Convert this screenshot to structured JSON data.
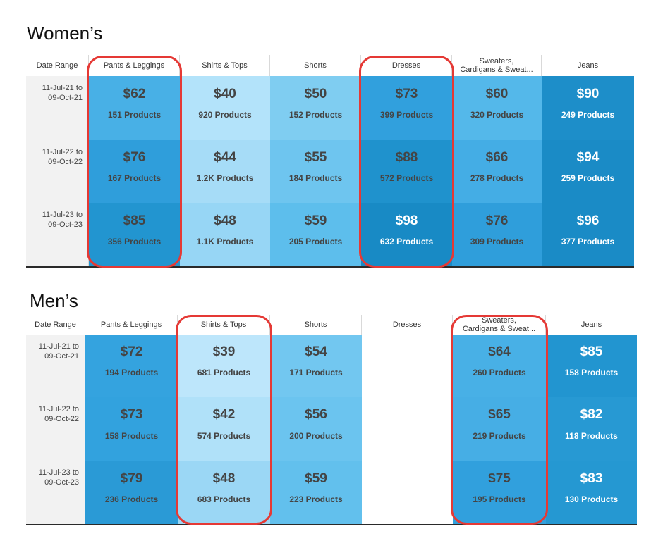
{
  "sections": [
    {
      "title": "Women’s",
      "header_date": "Date Range",
      "columns": [
        "Pants & Leggings",
        "Shirts & Tops",
        "Shorts",
        "Dresses",
        "Sweaters,\nCardigans & Sweat...",
        "Jeans"
      ],
      "highlighted_columns": [
        "Pants & Leggings",
        "Dresses"
      ],
      "rows": [
        {
          "date": "11-Jul-21 to\n09-Oct-21",
          "cells": [
            {
              "price": "$62",
              "count": "151 Products",
              "color": "#48b0e6"
            },
            {
              "price": "$40",
              "count": "920 Products",
              "color": "#b3e3fa"
            },
            {
              "price": "$50",
              "count": "152 Products",
              "color": "#7fcdf1"
            },
            {
              "price": "$73",
              "count": "399 Products",
              "color": "#31a0dd"
            },
            {
              "price": "$60",
              "count": "320 Products",
              "color": "#54b8ea"
            },
            {
              "price": "$90",
              "count": "249 Products",
              "color": "#1d8ec9"
            }
          ]
        },
        {
          "date": "11-Jul-22 to\n09-Oct-22",
          "cells": [
            {
              "price": "$76",
              "count": "167 Products",
              "color": "#2f9edb"
            },
            {
              "price": "$44",
              "count": "1.2K Products",
              "color": "#a6dcf7"
            },
            {
              "price": "$55",
              "count": "184 Products",
              "color": "#6ec5ef"
            },
            {
              "price": "$88",
              "count": "572 Products",
              "color": "#1f92cd"
            },
            {
              "price": "$66",
              "count": "278 Products",
              "color": "#44ade5"
            },
            {
              "price": "$94",
              "count": "259 Products",
              "color": "#1a8bc6"
            }
          ]
        },
        {
          "date": "11-Jul-23 to\n09-Oct-23",
          "cells": [
            {
              "price": "$85",
              "count": "356 Products",
              "color": "#2295d0"
            },
            {
              "price": "$48",
              "count": "1.1K Products",
              "color": "#97d6f5"
            },
            {
              "price": "$59",
              "count": "205 Products",
              "color": "#5dbeec"
            },
            {
              "price": "$98",
              "count": "632 Products",
              "color": "#188ac5"
            },
            {
              "price": "$76",
              "count": "309 Products",
              "color": "#2f9edb"
            },
            {
              "price": "$96",
              "count": "377 Products",
              "color": "#1a8bc6"
            }
          ]
        }
      ]
    },
    {
      "title": "Men’s",
      "header_date": "Date Range",
      "columns": [
        "Pants & Leggings",
        "Shirts & Tops",
        "Shorts",
        "Dresses",
        "Sweaters,\nCardigans & Sweat...",
        "Jeans"
      ],
      "highlighted_columns": [
        "Shirts & Tops",
        "Sweaters,\nCardigans & Sweat..."
      ],
      "rows": [
        {
          "date": "11-Jul-21 to\n09-Oct-21",
          "cells": [
            {
              "price": "$72",
              "count": "194 Products",
              "color": "#34a3df"
            },
            {
              "price": "$39",
              "count": "681 Products",
              "color": "#bde6fb"
            },
            {
              "price": "$54",
              "count": "171 Products",
              "color": "#72c7f0"
            },
            {
              "price": "",
              "count": "",
              "color": "#ffffff"
            },
            {
              "price": "$64",
              "count": "260 Products",
              "color": "#48b0e6"
            },
            {
              "price": "$85",
              "count": "158 Products",
              "color": "#2295d0"
            }
          ]
        },
        {
          "date": "11-Jul-22 to\n09-Oct-22",
          "cells": [
            {
              "price": "$73",
              "count": "158 Products",
              "color": "#32a2de"
            },
            {
              "price": "$42",
              "count": "574 Products",
              "color": "#b0e1f9"
            },
            {
              "price": "$56",
              "count": "200 Products",
              "color": "#6bc4ef"
            },
            {
              "price": "",
              "count": "",
              "color": "#ffffff"
            },
            {
              "price": "$65",
              "count": "219 Products",
              "color": "#46aee5"
            },
            {
              "price": "$82",
              "count": "118 Products",
              "color": "#2799d3"
            }
          ]
        },
        {
          "date": "11-Jul-23 to\n09-Oct-23",
          "cells": [
            {
              "price": "$79",
              "count": "236 Products",
              "color": "#2a9ad6"
            },
            {
              "price": "$48",
              "count": "683 Products",
              "color": "#9bd7f5"
            },
            {
              "price": "$59",
              "count": "223 Products",
              "color": "#62c0ed"
            },
            {
              "price": "",
              "count": "",
              "color": "#ffffff"
            },
            {
              "price": "$75",
              "count": "195 Products",
              "color": "#31a0dd"
            },
            {
              "price": "$83",
              "count": "130 Products",
              "color": "#2598d2"
            }
          ]
        }
      ]
    }
  ],
  "chart_data": [
    {
      "type": "heatmap",
      "title": "Women’s",
      "x": [
        "Pants & Leggings",
        "Shirts & Tops",
        "Shorts",
        "Dresses",
        "Sweaters, Cardigans & Sweat...",
        "Jeans"
      ],
      "y": [
        "11-Jul-21 to 09-Oct-21",
        "11-Jul-22 to 09-Oct-22",
        "11-Jul-23 to 09-Oct-23"
      ],
      "values": [
        [
          62,
          40,
          50,
          73,
          60,
          90
        ],
        [
          76,
          44,
          55,
          88,
          66,
          94
        ],
        [
          85,
          48,
          59,
          98,
          76,
          96
        ]
      ],
      "product_counts": [
        [
          "151",
          "920",
          "152",
          "399",
          "320",
          "249"
        ],
        [
          "167",
          "1.2K",
          "184",
          "572",
          "278",
          "259"
        ],
        [
          "356",
          "1.1K",
          "205",
          "632",
          "309",
          "377"
        ]
      ]
    },
    {
      "type": "heatmap",
      "title": "Men’s",
      "x": [
        "Pants & Leggings",
        "Shirts & Tops",
        "Shorts",
        "Dresses",
        "Sweaters, Cardigans & Sweat...",
        "Jeans"
      ],
      "y": [
        "11-Jul-21 to 09-Oct-21",
        "11-Jul-22 to 09-Oct-22",
        "11-Jul-23 to 09-Oct-23"
      ],
      "values": [
        [
          72,
          39,
          54,
          null,
          64,
          85
        ],
        [
          73,
          42,
          56,
          null,
          65,
          82
        ],
        [
          79,
          48,
          59,
          null,
          75,
          83
        ]
      ],
      "product_counts": [
        [
          "194",
          "681",
          "171",
          null,
          "260",
          "158"
        ],
        [
          "158",
          "574",
          "200",
          null,
          "219",
          "118"
        ],
        [
          "236",
          "683",
          "223",
          null,
          "195",
          "130"
        ]
      ]
    }
  ]
}
